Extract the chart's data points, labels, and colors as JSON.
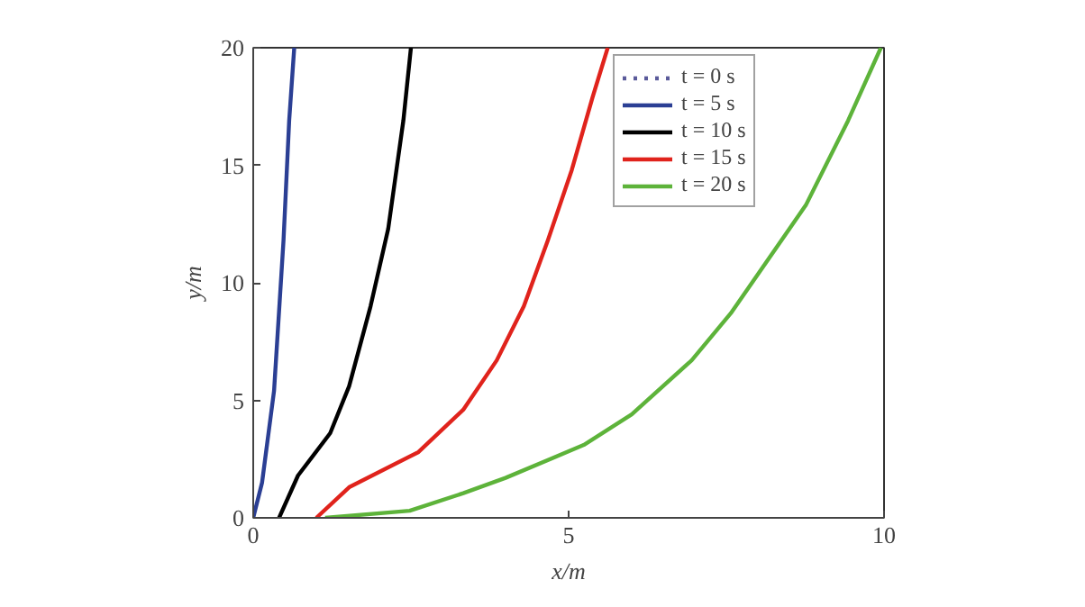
{
  "chart_data": {
    "type": "line",
    "xlabel": "x/m",
    "ylabel": "y/m",
    "xlim": [
      0,
      10
    ],
    "ylim": [
      0,
      20
    ],
    "xticks": [
      0,
      5,
      10
    ],
    "yticks": [
      0,
      5,
      10,
      15,
      20
    ],
    "grid": false,
    "legend": "top right",
    "series": [
      {
        "name": "t = 0 s",
        "color": "#5a5a9a",
        "line_style": "dotted"
      },
      {
        "name": "t = 5 s",
        "color": "#2b3f94",
        "x": [
          0,
          0.14,
          0.33,
          0.48,
          0.57,
          0.65
        ],
        "values": [
          0,
          1.5,
          5.4,
          11.8,
          16.9,
          20
        ]
      },
      {
        "name": "t = 10 s",
        "color": "#000000",
        "x": [
          0.41,
          0.71,
          1.22,
          1.52,
          1.86,
          2.14,
          2.38,
          2.5
        ],
        "values": [
          0,
          1.8,
          3.6,
          5.6,
          9.0,
          12.3,
          16.9,
          20
        ]
      },
      {
        "name": "t = 15 s",
        "color": "#e0231c",
        "x": [
          1.0,
          1.52,
          2.62,
          3.33,
          3.86,
          4.29,
          4.67,
          5.05,
          5.38,
          5.62
        ],
        "values": [
          0,
          1.3,
          2.8,
          4.6,
          6.7,
          9.0,
          11.8,
          14.8,
          17.9,
          20
        ]
      },
      {
        "name": "t = 20 s",
        "color": "#5db33a",
        "x": [
          1.14,
          2.48,
          3.33,
          4.0,
          5.24,
          6.0,
          6.95,
          7.57,
          8.76,
          9.43,
          9.95
        ],
        "values": [
          0,
          0.3,
          1.05,
          1.7,
          3.1,
          4.4,
          6.7,
          8.7,
          13.3,
          16.9,
          20
        ]
      }
    ]
  }
}
